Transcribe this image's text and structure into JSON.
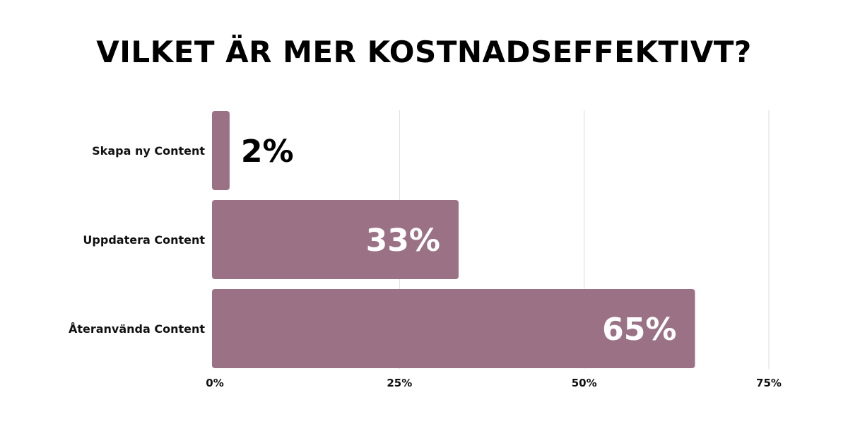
{
  "chart_data": {
    "type": "bar",
    "orientation": "horizontal",
    "title": "VILKET ÄR MER KOSTNADSEFFEKTIVT?",
    "categories": [
      "Skapa ny Content",
      "Uppdatera Content",
      "Återanvända Content"
    ],
    "values": [
      2,
      33,
      65
    ],
    "value_labels": [
      "2%",
      "33%",
      "65%"
    ],
    "xlim": [
      0,
      75
    ],
    "x_ticks": [
      0,
      25,
      50,
      75
    ],
    "x_tick_labels": [
      "0%",
      "25%",
      "50%",
      "75%"
    ],
    "grid": true,
    "legend": "none",
    "colors": {
      "bar": "#9b7285",
      "grid": "#dcdcdc",
      "label_inside": "#ffffff",
      "label_outside": "#000000"
    }
  }
}
